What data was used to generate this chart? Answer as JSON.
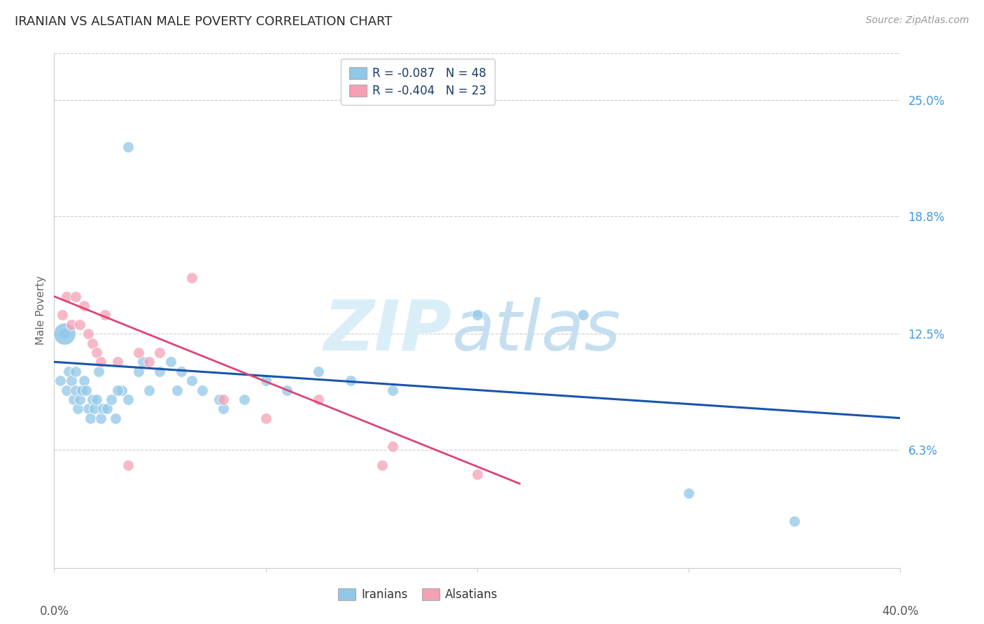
{
  "title": "IRANIAN VS ALSATIAN MALE POVERTY CORRELATION CHART",
  "source": "Source: ZipAtlas.com",
  "ylabel": "Male Poverty",
  "ytick_values": [
    6.3,
    12.5,
    18.8,
    25.0
  ],
  "ytick_labels": [
    "6.3%",
    "12.5%",
    "18.8%",
    "25.0%"
  ],
  "xmin": 0.0,
  "xmax": 40.0,
  "ymin": 0.0,
  "ymax": 27.5,
  "legend_line1": "R = -0.087   N = 48",
  "legend_line2": "R = -0.404   N = 23",
  "legend_labels": [
    "Iranians",
    "Alsatians"
  ],
  "background_color": "#ffffff",
  "grid_color": "#cccccc",
  "title_color": "#2a2a2a",
  "right_tick_color": "#4499dd",
  "iranian_color": "#90c8e8",
  "alsatian_color": "#f5a0b5",
  "trend_iranian_color": "#1a55aa",
  "trend_alsatian_color": "#dd4477",
  "iranians_x": [
    0.3,
    0.5,
    0.6,
    0.7,
    0.8,
    0.9,
    1.0,
    1.0,
    1.1,
    1.2,
    1.3,
    1.4,
    1.5,
    1.6,
    1.7,
    1.8,
    1.9,
    2.0,
    2.1,
    2.2,
    2.3,
    2.5,
    2.7,
    2.9,
    3.2,
    3.5,
    4.0,
    4.5,
    5.0,
    5.5,
    6.0,
    6.5,
    7.0,
    8.0,
    9.0,
    10.0,
    11.0,
    12.5,
    14.0,
    16.0,
    20.0,
    25.0,
    30.0,
    35.0,
    4.2,
    5.8,
    7.8,
    3.0
  ],
  "iranians_y": [
    10.0,
    12.5,
    9.5,
    10.5,
    10.0,
    9.0,
    10.5,
    9.5,
    8.5,
    9.0,
    9.5,
    10.0,
    9.5,
    8.5,
    8.0,
    9.0,
    8.5,
    9.0,
    10.5,
    8.0,
    8.5,
    8.5,
    9.0,
    8.0,
    9.5,
    9.0,
    10.5,
    9.5,
    10.5,
    11.0,
    10.5,
    10.0,
    9.5,
    8.5,
    9.0,
    10.0,
    9.5,
    10.5,
    10.0,
    9.5,
    13.5,
    13.5,
    4.0,
    2.5,
    11.0,
    9.5,
    9.0,
    9.5
  ],
  "iranian_big_x": 0.5,
  "iranian_big_y": 12.5,
  "iranian_outlier_x": 3.5,
  "iranian_outlier_y": 22.5,
  "alsatians_x": [
    0.4,
    0.6,
    0.8,
    1.0,
    1.2,
    1.4,
    1.6,
    1.8,
    2.0,
    2.2,
    2.4,
    3.0,
    4.0,
    5.0,
    6.5,
    8.0,
    10.0,
    12.5,
    15.5,
    20.0,
    16.0,
    4.5,
    3.5
  ],
  "alsatians_y": [
    13.5,
    14.5,
    13.0,
    14.5,
    13.0,
    14.0,
    12.5,
    12.0,
    11.5,
    11.0,
    13.5,
    11.0,
    11.5,
    11.5,
    15.5,
    9.0,
    8.0,
    9.0,
    5.5,
    5.0,
    6.5,
    11.0,
    5.5
  ],
  "iran_trend_x0": 0.0,
  "iran_trend_y0": 11.0,
  "iran_trend_x1": 40.0,
  "iran_trend_y1": 8.0,
  "alsat_trend_x0": 0.0,
  "alsat_trend_y0": 14.5,
  "alsat_trend_x1": 22.0,
  "alsat_trend_y1": 4.5,
  "alsat_dash_x0": 22.0,
  "alsat_dash_y0": 4.5,
  "alsat_dash_x1": 20.0,
  "alsat_dash_y1": 5.5
}
